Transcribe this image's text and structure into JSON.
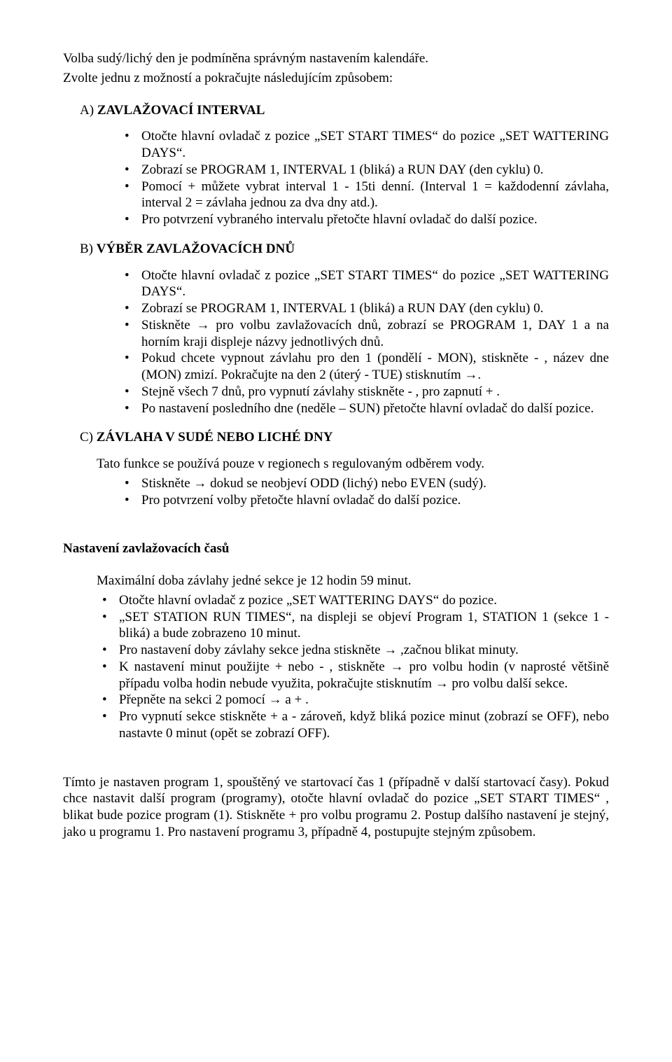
{
  "intro1": "Volba sudý/lichý den je podmíněna správným nastavením kalendáře.",
  "intro2": "Zvolte jednu z možností a pokračujte následujícím způsobem:",
  "A": {
    "heading_prefix": "A)",
    "heading": "ZAVLAŽOVACÍ INTERVAL",
    "items": [
      "Otočte hlavní ovladač z pozice „SET START TIMES“ do pozice „SET WATTERING DAYS“.",
      "Zobrazí se PROGRAM  1, INTERVAL 1 (bliká) a RUN DAY (den cyklu) 0.",
      "Pomocí + můžete vybrat interval  1 - 15ti denní. (Interval 1 = každodenní závlaha, interval 2 = závlaha jednou za dva dny atd.).",
      "Pro potvrzení vybraného intervalu přetočte hlavní ovladač do další pozice."
    ]
  },
  "B": {
    "heading_prefix": "B)",
    "heading": "VÝBĚR ZAVLAŽOVACÍCH DNŮ",
    "items": [
      "Otočte hlavní ovladač z pozice „SET START TIMES“ do pozice „SET WATTERING DAYS“.",
      "Zobrazí se PROGRAM  1, INTERVAL 1 (bliká) a RUN DAY (den cyklu) 0.",
      "Stiskněte → pro volbu zavlažovacích dnů, zobrazí se PROGRAM  1, DAY 1 a na horním kraji displeje názvy jednotlivých dnů.",
      "Pokud chcete vypnout závlahu pro den 1 (pondělí - MON), stiskněte  -  ,  název dne (MON) zmizí. Pokračujte na den 2 (úterý - TUE) stisknutím  →.",
      " Stejně všech 7 dnů, pro vypnutí závlahy stiskněte  - , pro zapnutí + .",
      " Po nastavení posledního dne (neděle – SUN) přetočte hlavní ovladač do další pozice."
    ]
  },
  "C": {
    "heading_prefix": "C)",
    "heading": "ZÁVLAHA V SUDÉ NEBO LICHÉ DNY",
    "intro": "Tato funkce se používá pouze v regionech s regulovaným odběrem vody.",
    "items": [
      "Stiskněte  →  dokud se neobjeví ODD (lichý) nebo EVEN (sudý).",
      "Pro potvrzení volby přetočte hlavní ovladač do další pozice."
    ]
  },
  "times": {
    "heading": "Nastavení zavlažovacích časů",
    "intro": "Maximální doba závlahy jedné sekce je 12 hodin 59 minut.",
    "items": [
      "Otočte hlavní ovladač z pozice „SET WATTERING DAYS“ do pozice.",
      " „SET STATION RUN TIMES“, na displeji se objeví Program 1, STATION 1 (sekce 1 - bliká) a bude zobrazeno 10 minut.",
      "Pro nastavení doby závlahy sekce jedna stiskněte  → ,začnou blikat minuty.",
      "K nastavení minut použijte  +  nebo  - , stiskněte → pro volbu hodin (v naprosté většině případu volba hodin nebude využita, pokračujte stisknutím → pro volbu další sekce.",
      "Přepněte na sekci 2 pomocí  → a  + .",
      "Pro vypnutí sekce stiskněte   +  a  -  zároveň, když bliká pozice minut (zobrazí se OFF), nebo nastavte 0 minut (opět se zobrazí OFF)."
    ]
  },
  "outro": "Tímto je nastaven program 1, spouštěný ve startovací čas 1 (případně v další startovací časy). Pokud chce nastavit další program (programy), otočte hlavní ovladač do pozice „SET START TIMES“ , blikat bude pozice program (1). Stiskněte + pro volbu programu 2. Postup dalšího nastavení je stejný, jako u programu 1. Pro nastavení programu 3, případně 4, postupujte stejným způsobem."
}
